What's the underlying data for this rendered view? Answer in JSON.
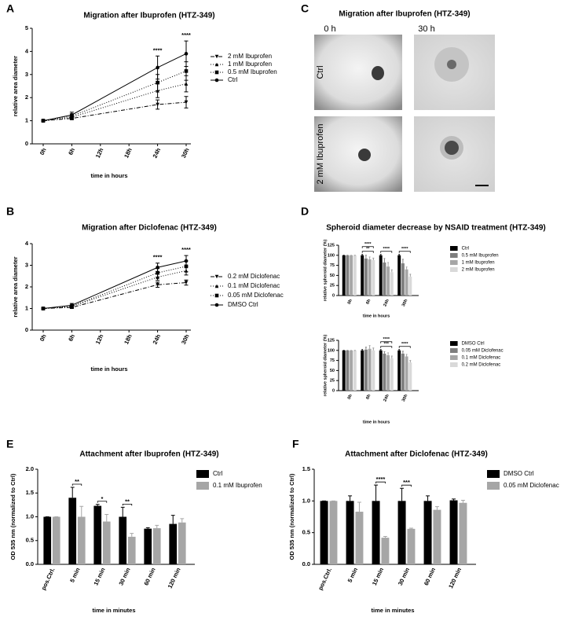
{
  "panel_labels": [
    "A",
    "B",
    "C",
    "D",
    "E",
    "F"
  ],
  "image_panel": {
    "title": "Migration after Ibuprofen (HTZ-349)",
    "columns": [
      "0 h",
      "30 h"
    ],
    "rows": [
      "Ctrl",
      "2 mM Ibuprofen"
    ]
  },
  "chart_data": [
    {
      "type": "line",
      "title": "Migration after Ibuprofen (HTZ-349)",
      "xlabel": "time in hours",
      "ylabel": "relative area diameter",
      "x": [
        0,
        6,
        24,
        30
      ],
      "xlim": [
        0,
        30
      ],
      "xticks": [
        {
          "value": 0,
          "label": "0h"
        },
        {
          "value": 6,
          "label": "6h"
        },
        {
          "value": 12,
          "label": "12h"
        },
        {
          "value": 18,
          "label": "18h"
        },
        {
          "value": 24,
          "label": "24h"
        },
        {
          "value": 30,
          "label": "30h"
        }
      ],
      "ylim": [
        0,
        5
      ],
      "yticks": [
        0,
        1,
        2,
        3,
        4,
        5
      ],
      "series": [
        {
          "name": "2 mM Ibuprofen",
          "color": "#000000",
          "marker": "triangle-down",
          "linestyle": "dashdot",
          "values": [
            1,
            1.1,
            1.7,
            1.8
          ],
          "errors": [
            0.03,
            0.06,
            0.2,
            0.25
          ]
        },
        {
          "name": "1 mM Ibuprofen",
          "color": "#000000",
          "marker": "triangle-up",
          "linestyle": "dotted",
          "values": [
            1,
            1.15,
            2.3,
            2.6
          ],
          "errors": [
            0.03,
            0.08,
            0.3,
            0.35
          ]
        },
        {
          "name": "0.5 mM Ibuprofen",
          "color": "#000000",
          "marker": "square",
          "linestyle": "dotted",
          "values": [
            1,
            1.2,
            2.65,
            3.15
          ],
          "errors": [
            0.03,
            0.1,
            0.35,
            0.4
          ]
        },
        {
          "name": "Ctrl",
          "color": "#000000",
          "marker": "circle",
          "linestyle": "solid",
          "values": [
            1,
            1.25,
            3.3,
            3.9
          ],
          "errors": [
            0.03,
            0.12,
            0.5,
            0.55
          ]
        }
      ],
      "annotations": [
        {
          "text": "****",
          "x": 24
        },
        {
          "text": "****",
          "x": 30
        }
      ]
    },
    {
      "type": "line",
      "title": "Migration after Diclofenac (HTZ-349)",
      "xlabel": "time in hours",
      "ylabel": "relative area diameter",
      "x": [
        0,
        6,
        24,
        30
      ],
      "xlim": [
        0,
        30
      ],
      "xticks": [
        {
          "value": 0,
          "label": "0h"
        },
        {
          "value": 6,
          "label": "6h"
        },
        {
          "value": 12,
          "label": "12h"
        },
        {
          "value": 18,
          "label": "18h"
        },
        {
          "value": 24,
          "label": "24h"
        },
        {
          "value": 30,
          "label": "30h"
        }
      ],
      "ylim": [
        0,
        4
      ],
      "yticks": [
        0,
        1,
        2,
        3,
        4
      ],
      "series": [
        {
          "name": "0.2 mM Diclofenac",
          "color": "#000000",
          "marker": "triangle-down",
          "linestyle": "dashdot",
          "values": [
            1,
            1.05,
            2.1,
            2.2
          ],
          "errors": [
            0.03,
            0.05,
            0.12,
            0.12
          ]
        },
        {
          "name": "0.1 mM Diclofenac",
          "color": "#000000",
          "marker": "triangle-up",
          "linestyle": "dotted",
          "values": [
            1,
            1.1,
            2.45,
            2.75
          ],
          "errors": [
            0.03,
            0.06,
            0.15,
            0.2
          ]
        },
        {
          "name": "0.05 mM Diclofenac",
          "color": "#000000",
          "marker": "square",
          "linestyle": "dotted",
          "values": [
            1,
            1.1,
            2.65,
            2.95
          ],
          "errors": [
            0.03,
            0.07,
            0.2,
            0.25
          ]
        },
        {
          "name": "DMSO Ctrl",
          "color": "#000000",
          "marker": "circle",
          "linestyle": "solid",
          "values": [
            1,
            1.15,
            2.9,
            3.2
          ],
          "errors": [
            0.03,
            0.08,
            0.2,
            0.25
          ]
        }
      ],
      "annotations": [
        {
          "text": "****",
          "x": 24
        },
        {
          "text": "****",
          "x": 30
        }
      ]
    },
    {
      "type": "bar",
      "title": "Spheroid diameter decrease by NSAID treatment (HTZ-349)",
      "xlabel": "time in hours",
      "ylabel": "relative spheroid diameter (%)",
      "categories": [
        "0h",
        "6h",
        "24h",
        "30h"
      ],
      "ylim": [
        0,
        125
      ],
      "yticks": [
        0,
        25,
        50,
        75,
        100,
        125
      ],
      "series": [
        {
          "name": "Ctrl",
          "color": "#000000",
          "values": [
            100,
            100,
            100,
            100
          ],
          "errors": [
            0,
            2,
            2,
            2
          ]
        },
        {
          "name": "0.5 mM Ibuprofen",
          "color": "#7f7f7f",
          "values": [
            100,
            92,
            82,
            80
          ],
          "errors": [
            0,
            8,
            10,
            10
          ]
        },
        {
          "name": "1 mM Ibuprofen",
          "color": "#a6a6a6",
          "values": [
            100,
            90,
            72,
            65
          ],
          "errors": [
            0,
            6,
            10,
            6
          ]
        },
        {
          "name": "2 mM Ibuprofen",
          "color": "#d9d9d9",
          "values": [
            100,
            88,
            58,
            47
          ],
          "errors": [
            0,
            5,
            6,
            6
          ]
        }
      ],
      "annotations": [
        {
          "text": "**",
          "category": "6h"
        },
        {
          "text": "****",
          "category": "6h"
        },
        {
          "text": "****",
          "category": "24h"
        },
        {
          "text": "****",
          "category": "30h"
        }
      ]
    },
    {
      "type": "bar",
      "xlabel": "time in hours",
      "ylabel": "relative spheroid diameter (%)",
      "categories": [
        "0h",
        "6h",
        "24h",
        "30h"
      ],
      "ylim": [
        0,
        125
      ],
      "yticks": [
        0,
        25,
        50,
        75,
        100,
        125
      ],
      "series": [
        {
          "name": "DMSO Ctrl",
          "color": "#000000",
          "values": [
            100,
            100,
            100,
            100
          ],
          "errors": [
            0,
            2,
            2,
            2
          ]
        },
        {
          "name": "0.05 mM Diclofenac",
          "color": "#7f7f7f",
          "values": [
            100,
            102,
            92,
            92
          ],
          "errors": [
            0,
            6,
            5,
            6
          ]
        },
        {
          "name": "0.1 mM Diclofenac",
          "color": "#a6a6a6",
          "values": [
            100,
            104,
            88,
            85
          ],
          "errors": [
            0,
            8,
            6,
            5
          ]
        },
        {
          "name": "0.2 mM Diclofenac",
          "color": "#d9d9d9",
          "values": [
            100,
            100,
            80,
            70
          ],
          "errors": [
            0,
            6,
            6,
            5
          ]
        }
      ],
      "annotations": [
        {
          "text": "***",
          "category": "24h"
        },
        {
          "text": "****",
          "category": "24h"
        },
        {
          "text": "****",
          "category": "30h"
        }
      ]
    },
    {
      "type": "bar",
      "title": "Attachment after Ibuprofen (HTZ-349)",
      "xlabel": "time in minutes",
      "ylabel": "OD 535 nm (normalized to Ctrl)",
      "categories": [
        "pos.Ctrl.",
        "5 min",
        "15 min",
        "30 min",
        "60 min",
        "120 min"
      ],
      "ylim": [
        0,
        2
      ],
      "yticks": [
        {
          "value": 0,
          "label": "0.0"
        },
        {
          "value": 0.5,
          "label": "0.5"
        },
        {
          "value": 1,
          "label": "1.0"
        },
        {
          "value": 1.5,
          "label": "1.5"
        },
        {
          "value": 2,
          "label": "2.0"
        }
      ],
      "series": [
        {
          "name": "Ctrl",
          "color": "#000000",
          "values": [
            1,
            1.4,
            1.23,
            1.0,
            0.75,
            0.85
          ],
          "errors": [
            0,
            0.22,
            0.03,
            0.2,
            0.02,
            0.18
          ]
        },
        {
          "name": "0.1 mM Ibuprofen",
          "color": "#a6a6a6",
          "values": [
            1,
            1.0,
            0.9,
            0.58,
            0.76,
            0.88
          ],
          "errors": [
            0,
            0.22,
            0.15,
            0.07,
            0.06,
            0.08
          ]
        }
      ],
      "annotations": [
        {
          "text": "**",
          "category": "5 min"
        },
        {
          "text": "*",
          "category": "15 min"
        },
        {
          "text": "**",
          "category": "30 min"
        }
      ]
    },
    {
      "type": "bar",
      "title": "Attachment after Diclofenac (HTZ-349)",
      "xlabel": "time in minutes",
      "ylabel": "OD 535 nm (normalized to Ctrl)",
      "categories": [
        "pos.Ctrl.",
        "5 min",
        "15 min",
        "30 min",
        "60 min",
        "120 min"
      ],
      "ylim": [
        0,
        1.5
      ],
      "yticks": [
        {
          "value": 0,
          "label": "0.0"
        },
        {
          "value": 0.5,
          "label": "0.5"
        },
        {
          "value": 1,
          "label": "1.0"
        },
        {
          "value": 1.5,
          "label": "1.5"
        }
      ],
      "series": [
        {
          "name": "DMSO Ctrl",
          "color": "#000000",
          "values": [
            1,
            1.0,
            1.0,
            1.0,
            1.0,
            1.01
          ],
          "errors": [
            0,
            0.08,
            0.25,
            0.2,
            0.08,
            0.02
          ]
        },
        {
          "name": "0.05 mM Diclofenac",
          "color": "#a6a6a6",
          "values": [
            1,
            0.83,
            0.42,
            0.56,
            0.86,
            0.97
          ],
          "errors": [
            0,
            0.15,
            0.02,
            0.01,
            0.05,
            0.04
          ]
        }
      ],
      "annotations": [
        {
          "text": "****",
          "category": "15 min"
        },
        {
          "text": "***",
          "category": "30 min"
        }
      ]
    }
  ]
}
